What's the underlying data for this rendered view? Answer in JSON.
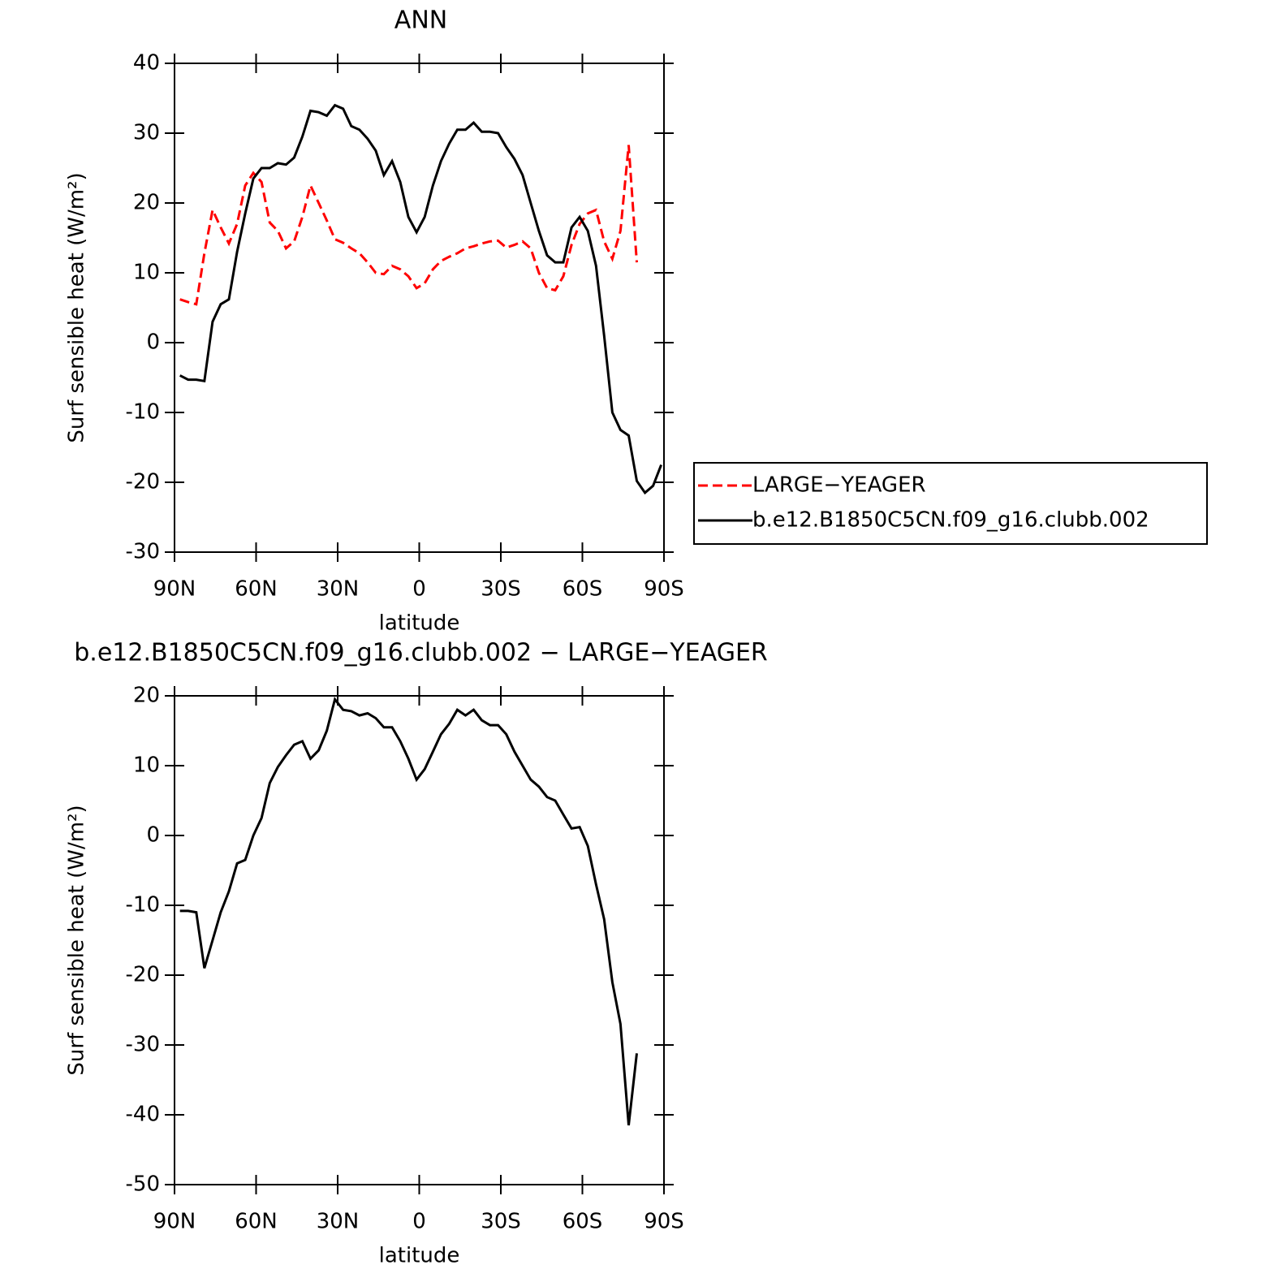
{
  "chart_data": [
    {
      "type": "line",
      "title": "ANN",
      "xlabel": "latitude",
      "ylabel": "Surf sensible heat (W/m²)",
      "x": [
        88,
        85,
        82,
        79,
        76,
        73,
        70,
        67,
        64,
        61,
        58,
        55,
        52,
        49,
        46,
        43,
        40,
        37,
        34,
        31,
        28,
        25,
        22,
        19,
        16,
        13,
        10,
        7,
        4,
        1,
        -2,
        -5,
        -8,
        -11,
        -14,
        -17,
        -20,
        -23,
        -26,
        -29,
        -32,
        -35,
        -38,
        -41,
        -44,
        -47,
        -50,
        -53,
        -56,
        -59,
        -62,
        -65,
        -68,
        -71,
        -74,
        -77,
        -80,
        -83,
        -86,
        -89
      ],
      "series": [
        {
          "name": "LARGE−YEAGER",
          "color": "#ff0000",
          "line_style": "dashed",
          "values": [
            6.2,
            5.8,
            5.5,
            12.8,
            19,
            16.5,
            14.2,
            17,
            22.5,
            24.3,
            23,
            17.2,
            16,
            13.5,
            14.5,
            18,
            22.5,
            20,
            17.5,
            14.8,
            14.3,
            13.5,
            12.8,
            11.5,
            10,
            9.8,
            11,
            10.5,
            9.5,
            7.8,
            8.5,
            10.5,
            11.7,
            12.3,
            12.8,
            13.5,
            13.8,
            14.2,
            14.5,
            14.6,
            13.6,
            14,
            14.5,
            13.5,
            10,
            7.8,
            7.5,
            9.5,
            14,
            17,
            18.5,
            19,
            14.5,
            12,
            16,
            28.3,
            11.5,
            null,
            null,
            null
          ]
        },
        {
          "name": "b.e12.B1850C5CN.f09_g16.clubb.002",
          "color": "#000000",
          "line_style": "solid",
          "values": [
            -4.7,
            -5.3,
            -5.3,
            -5.5,
            3,
            5.5,
            6.2,
            13,
            18.5,
            23.5,
            25,
            25,
            25.7,
            25.5,
            26.5,
            29.5,
            33.2,
            33,
            32.5,
            34,
            33.5,
            31,
            30.5,
            29.2,
            27.5,
            24,
            26,
            23,
            18,
            15.8,
            18,
            22.5,
            26,
            28.5,
            30.5,
            30.5,
            31.5,
            30.2,
            30.2,
            30,
            28,
            26.3,
            24,
            20,
            16,
            12.5,
            11.5,
            11.5,
            16.5,
            18,
            16,
            11,
            1,
            -10,
            -12.5,
            -13.3,
            -19.8,
            -21.5,
            -20.5,
            -17.5
          ]
        }
      ],
      "xlim": [
        90,
        -90
      ],
      "xticks": [
        {
          "value": 90,
          "label": "90N"
        },
        {
          "value": 60,
          "label": "60N"
        },
        {
          "value": 30,
          "label": "30N"
        },
        0,
        {
          "value": -30,
          "label": "30S"
        },
        {
          "value": -60,
          "label": "60S"
        },
        {
          "value": -90,
          "label": "90S"
        }
      ],
      "ylim": [
        -30,
        40
      ],
      "yticks": [
        -30,
        -20,
        -10,
        0,
        10,
        20,
        30,
        40
      ],
      "legend": "outside-right"
    },
    {
      "type": "line",
      "title": "b.e12.B1850C5CN.f09_g16.clubb.002 − LARGE−YEAGER",
      "xlabel": "latitude",
      "ylabel": "Surf sensible heat (W/m²)",
      "x": [
        88,
        85,
        82,
        79,
        76,
        73,
        70,
        67,
        64,
        61,
        58,
        55,
        52,
        49,
        46,
        43,
        40,
        37,
        34,
        31,
        28,
        25,
        22,
        19,
        16,
        13,
        10,
        7,
        4,
        1,
        -2,
        -5,
        -8,
        -11,
        -14,
        -17,
        -20,
        -23,
        -26,
        -29,
        -32,
        -35,
        -38,
        -41,
        -44,
        -47,
        -50,
        -53,
        -56,
        -59,
        -62,
        -65,
        -68,
        -71,
        -74,
        -77,
        -80,
        -83,
        -86,
        -89
      ],
      "series": [
        {
          "color": "#000000",
          "line_style": "solid",
          "values": [
            -10.8,
            -10.8,
            -11,
            -19,
            -15,
            -11,
            -8,
            -4,
            -3.5,
            0,
            2.5,
            7.5,
            9.8,
            11.5,
            13,
            13.5,
            11,
            12.2,
            15,
            19.5,
            18,
            17.8,
            17.2,
            17.5,
            16.8,
            15.5,
            15.5,
            13.5,
            11,
            8,
            9.5,
            12,
            14.5,
            16,
            18,
            17.2,
            18,
            16.5,
            15.8,
            15.8,
            14.5,
            12,
            10,
            8,
            7,
            5.5,
            5,
            3,
            1,
            1.2,
            -1.5,
            -7,
            -12,
            -21,
            -27,
            -41.5,
            -31.2,
            null,
            null,
            null
          ]
        }
      ],
      "xlim": [
        90,
        -90
      ],
      "xticks": [
        {
          "value": 90,
          "label": "90N"
        },
        {
          "value": 60,
          "label": "60N"
        },
        {
          "value": 30,
          "label": "30N"
        },
        0,
        {
          "value": -30,
          "label": "30S"
        },
        {
          "value": -60,
          "label": "60S"
        },
        {
          "value": -90,
          "label": "90S"
        }
      ],
      "ylim": [
        -50,
        20
      ],
      "yticks": [
        -50,
        -40,
        -30,
        -20,
        -10,
        0,
        10,
        20
      ]
    }
  ]
}
